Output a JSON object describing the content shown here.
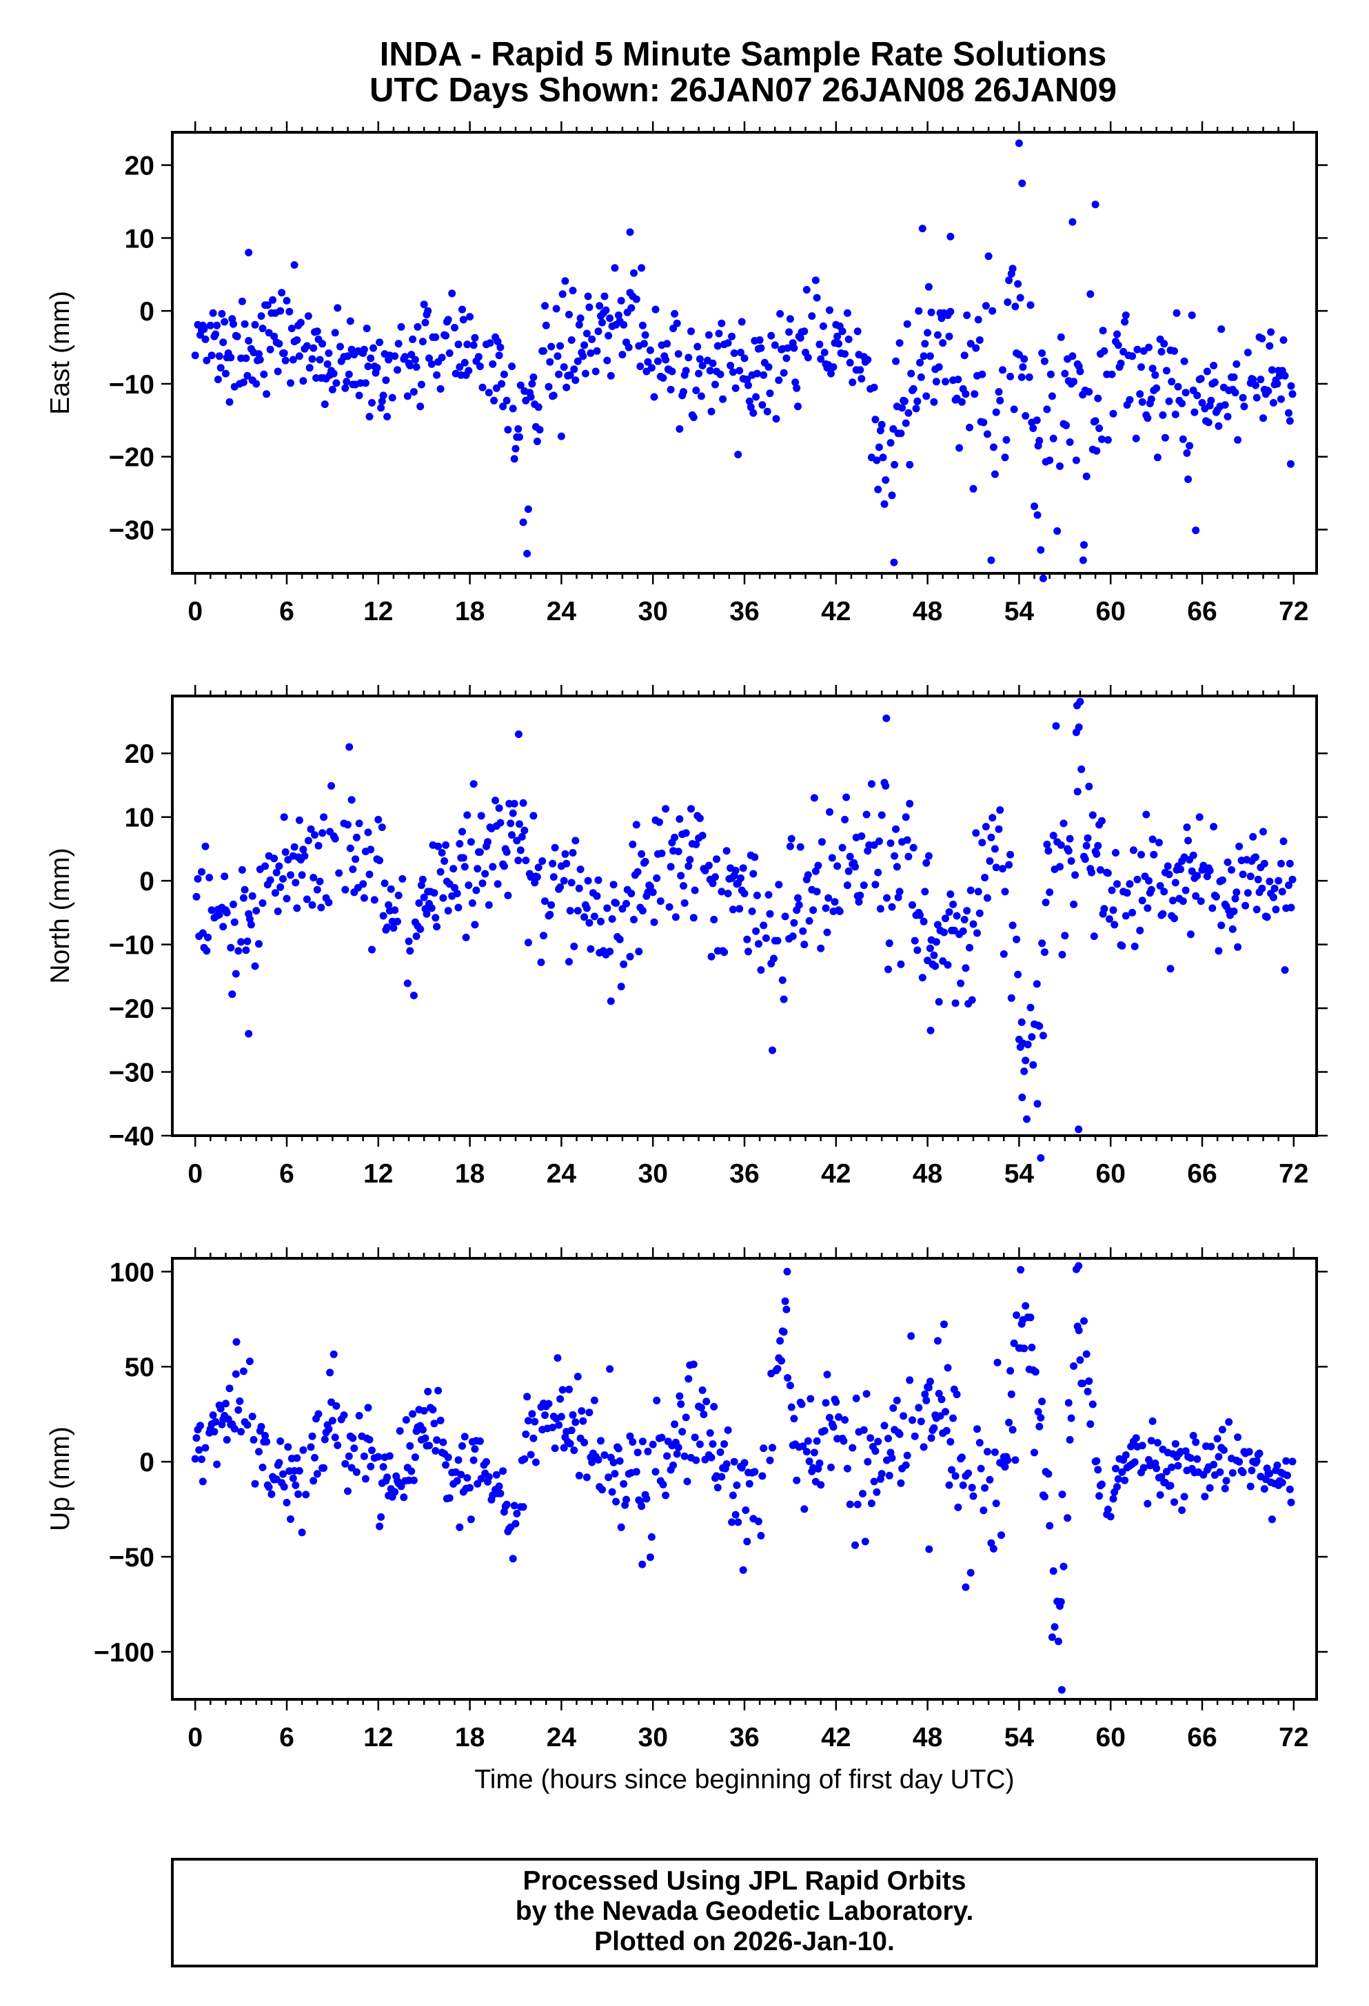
{
  "title": {
    "line1": "INDA - Rapid 5 Minute Sample Rate Solutions",
    "line2": "UTC Days Shown:  26JAN07 26JAN08 26JAN09"
  },
  "footer": {
    "line1": "Processed Using JPL Rapid Orbits",
    "line2": "by the Nevada Geodetic Laboratory.",
    "line3": "Plotted on 2026-Jan-10."
  },
  "colors": {
    "points": "#0000ff",
    "axes": "#000000"
  },
  "chart_data": [
    {
      "type": "scatter",
      "title": "",
      "xlabel": "",
      "ylabel": "East (mm)",
      "xlim": [
        -1.5,
        73.5
      ],
      "ylim": [
        -36,
        24.5
      ],
      "x_ticks": [
        "0",
        "6",
        "12",
        "18",
        "24",
        "30",
        "36",
        "42",
        "48",
        "54",
        "60",
        "66",
        "72"
      ],
      "y_ticks": [
        "20",
        "10",
        "0",
        "−10",
        "−20",
        "−30"
      ],
      "series": [
        {
          "name": "",
          "x": [],
          "y": []
        }
      ]
    },
    {
      "type": "scatter",
      "title": "",
      "xlabel": "",
      "ylabel": "North (mm)",
      "xlim": [
        -1.5,
        73.5
      ],
      "ylim": [
        -40,
        29
      ],
      "x_ticks": [
        "0",
        "6",
        "12",
        "18",
        "24",
        "30",
        "36",
        "42",
        "48",
        "54",
        "60",
        "66",
        "72"
      ],
      "y_ticks": [
        "20",
        "10",
        "0",
        "−10",
        "−20",
        "−30",
        "−40"
      ],
      "series": [
        {
          "name": "",
          "x": [],
          "y": []
        }
      ]
    },
    {
      "type": "scatter",
      "title": "",
      "xlabel": "Time (hours since beginning of first day UTC)",
      "ylabel": "Up (mm)",
      "xlim": [
        -1.5,
        73.5
      ],
      "ylim": [
        -125,
        107
      ],
      "x_ticks": [
        "0",
        "6",
        "12",
        "18",
        "24",
        "30",
        "36",
        "42",
        "48",
        "54",
        "60",
        "66",
        "72"
      ],
      "y_ticks": [
        "100",
        "50",
        "0",
        "−50",
        "−100"
      ],
      "series": [
        {
          "name": "",
          "x": [],
          "y": []
        }
      ]
    }
  ]
}
